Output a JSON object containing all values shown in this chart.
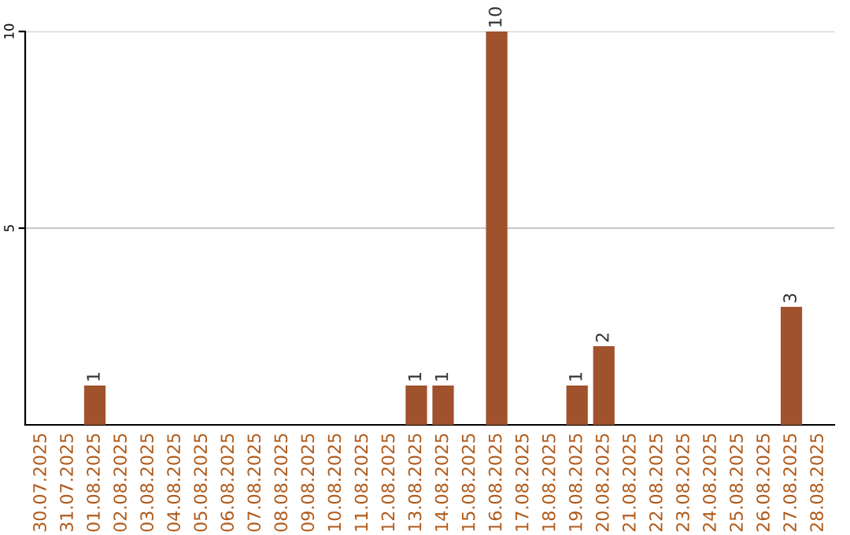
{
  "chart_data": {
    "type": "bar",
    "categories": [
      "30.07.2025",
      "31.07.2025",
      "01.08.2025",
      "02.08.2025",
      "03.08.2025",
      "04.08.2025",
      "05.08.2025",
      "06.08.2025",
      "07.08.2025",
      "08.08.2025",
      "09.08.2025",
      "10.08.2025",
      "11.08.2025",
      "12.08.2025",
      "13.08.2025",
      "14.08.2025",
      "15.08.2025",
      "16.08.2025",
      "17.08.2025",
      "18.08.2025",
      "19.08.2025",
      "20.08.2025",
      "21.08.2025",
      "22.08.2025",
      "23.08.2025",
      "24.08.2025",
      "25.08.2025",
      "26.08.2025",
      "27.08.2025",
      "28.08.2025"
    ],
    "values": [
      0,
      0,
      1,
      0,
      0,
      0,
      0,
      0,
      0,
      0,
      0,
      0,
      0,
      0,
      1,
      1,
      0,
      10,
      0,
      0,
      1,
      2,
      0,
      0,
      0,
      0,
      0,
      0,
      3,
      0
    ],
    "value_labels": [
      null,
      null,
      "1",
      null,
      null,
      null,
      null,
      null,
      null,
      null,
      null,
      null,
      null,
      null,
      "1",
      "1",
      null,
      "10",
      null,
      null,
      "1",
      "2",
      null,
      null,
      null,
      null,
      null,
      null,
      "3",
      null
    ],
    "color": "#a0522d",
    "ylim": [
      0,
      10
    ],
    "yticks": [
      5,
      10
    ],
    "grid": "y",
    "legend": false
  }
}
